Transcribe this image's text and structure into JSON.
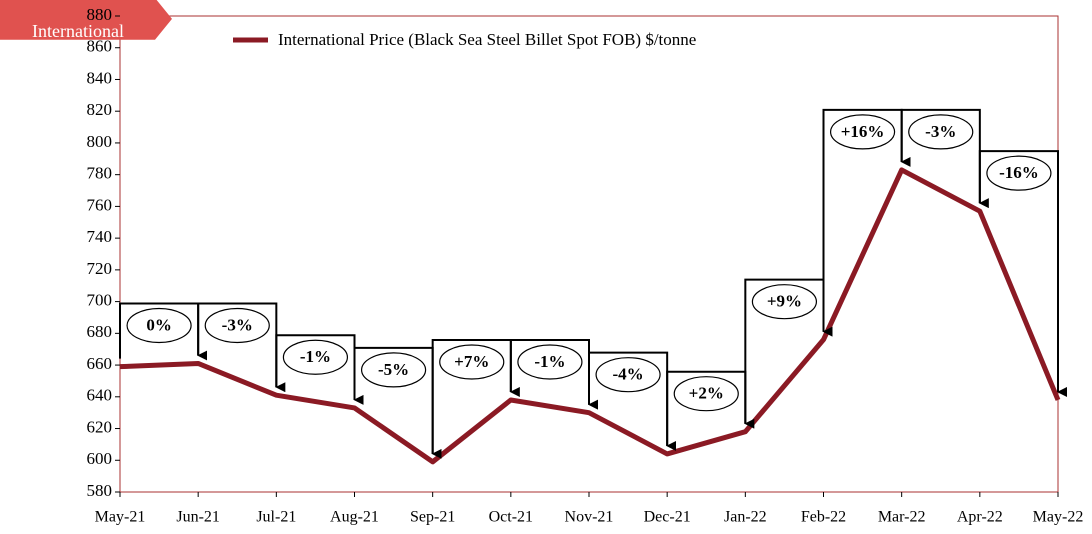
{
  "chart_data": {
    "type": "line",
    "tag": "International",
    "categories": [
      "May-21",
      "Jun-21",
      "Jul-21",
      "Aug-21",
      "Sep-21",
      "Oct-21",
      "Nov-21",
      "Dec-21",
      "Jan-22",
      "Feb-22",
      "Mar-22",
      "Apr-22",
      "May-22"
    ],
    "series": [
      {
        "name": "International Price (Black Sea Steel Billet Spot FOB) $/tonne",
        "color": "#8b1a24",
        "values": [
          659,
          661,
          641,
          633,
          599,
          638,
          630,
          604,
          618,
          676,
          783,
          757,
          638
        ]
      }
    ],
    "annotations": [
      "0%",
      "-3%",
      "-1%",
      "-5%",
      "+7%",
      "-1%",
      "-4%",
      "+2%",
      "+9%",
      "+16%",
      "-3%",
      "-16%"
    ],
    "ylim": [
      580,
      880
    ],
    "yticks": [
      580,
      600,
      620,
      640,
      660,
      680,
      700,
      720,
      740,
      760,
      780,
      800,
      820,
      840,
      860,
      880
    ],
    "legend": "top"
  }
}
